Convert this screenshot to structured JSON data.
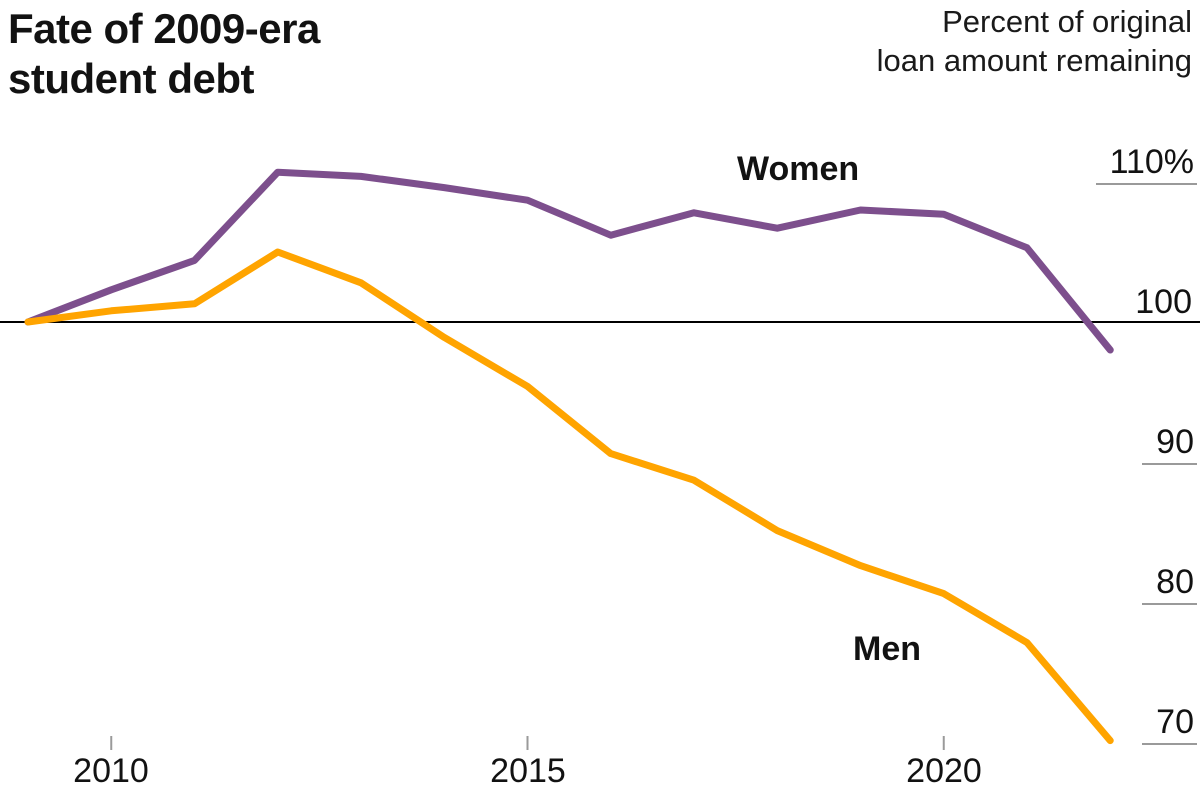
{
  "header": {
    "title_line1": "Fate of 2009-era",
    "title_line2": "student debt",
    "subtitle_line1": "Percent of original",
    "subtitle_line2": "loan amount remaining"
  },
  "chart_data": {
    "type": "line",
    "title": "Fate of 2009-era student debt",
    "ylabel": "Percent of original loan amount remaining",
    "xlabel": "",
    "x": [
      2009,
      2010,
      2011,
      2012,
      2013,
      2014,
      2015,
      2016,
      2017,
      2018,
      2019,
      2020,
      2021,
      2022
    ],
    "series": [
      {
        "name": "Women",
        "color": "#7d4f8d",
        "values": [
          100,
          102.3,
          104.4,
          110.7,
          110.4,
          109.6,
          108.7,
          106.2,
          107.8,
          106.7,
          108.0,
          107.7,
          105.3,
          98.0
        ]
      },
      {
        "name": "Men",
        "color": "#ffa400",
        "values": [
          100,
          100.8,
          101.3,
          105.0,
          102.8,
          98.9,
          95.4,
          90.6,
          88.7,
          85.1,
          82.6,
          80.6,
          77.1,
          70.1
        ]
      }
    ],
    "baseline_value": 100,
    "ylim": [
      68,
      113
    ],
    "y_ticks": [
      {
        "label": "110%",
        "value": 110
      },
      {
        "label": "100",
        "value": 100
      },
      {
        "label": "90",
        "value": 90
      },
      {
        "label": "80",
        "value": 80
      },
      {
        "label": "70",
        "value": 70
      }
    ],
    "x_ticks": [
      2010,
      2015,
      2020
    ],
    "x_tick_labels": [
      "2010",
      "2015",
      "2020"
    ],
    "grid": "right-edge gridline stubs only; full-width black line at 100",
    "legend": "inline labels next to lines"
  },
  "colors": {
    "women_line": "#7d4f8d",
    "men_line": "#ffa400",
    "baseline": "#000000",
    "gridline": "#9a9a9a",
    "text": "#121212"
  }
}
